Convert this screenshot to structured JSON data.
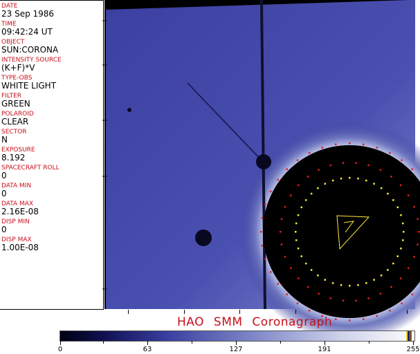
{
  "fields": [
    {
      "label": "DATE",
      "value": "23 Sep 1986"
    },
    {
      "label": "TIME",
      "value": "09:42:24 UT"
    },
    {
      "label": "OBJECT",
      "value": "SUN:CORONA"
    },
    {
      "label": "INTENSITY SOURCE",
      "value": "(K+F)*V"
    },
    {
      "label": "TYPE-OBS",
      "value": "WHITE LIGHT"
    },
    {
      "label": "FILTER",
      "value": "GREEN"
    },
    {
      "label": "POLAROID",
      "value": "CLEAR"
    },
    {
      "label": "SECTOR",
      "value": "N"
    },
    {
      "label": "EXPOSURE",
      "value": "8.192"
    },
    {
      "label": "SPACECRAFT ROLL",
      "value": "0"
    },
    {
      "label": "DATA MIN",
      "value": "0"
    },
    {
      "label": "DATA MAX",
      "value": "2.16E-08"
    },
    {
      "label": "DISP MIN",
      "value": "0"
    },
    {
      "label": "DISP MAX",
      "value": "1.00E-08"
    }
  ],
  "title": "HAO  SMM  Coronagraph",
  "colorbar": {
    "ticks": [
      "0",
      "63",
      "127",
      "191",
      "255"
    ],
    "colors": {
      "label": "#c8101a",
      "low": "#000010",
      "mid": "#3a3ea0",
      "high": "#ffffff"
    }
  }
}
